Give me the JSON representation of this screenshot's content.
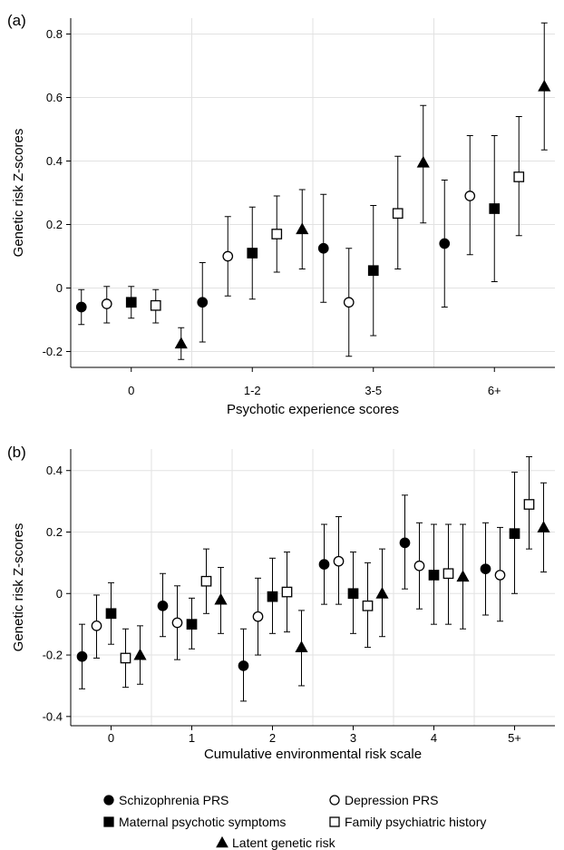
{
  "chart_data": [
    {
      "type": "scatter",
      "panel_label": "(a)",
      "title": "",
      "xlabel": "Psychotic experience scores",
      "ylabel": "Genetic risk Z-scores",
      "categories": [
        "0",
        "1-2",
        "3-5",
        "6+"
      ],
      "ylim": [
        -0.25,
        0.85
      ],
      "yticks": [
        "-0.2",
        "0",
        "0.2",
        "0.4",
        "0.6",
        "0.8"
      ],
      "ytick_values": [
        -0.2,
        0,
        0.2,
        0.4,
        0.6,
        0.8
      ],
      "grid": true,
      "series": [
        {
          "name": "Schizophrenia PRS",
          "marker": "filled-circle",
          "values": [
            -0.06,
            -0.045,
            0.125,
            0.14
          ],
          "lower": [
            -0.115,
            -0.17,
            -0.045,
            -0.06
          ],
          "upper": [
            -0.005,
            0.08,
            0.295,
            0.34
          ]
        },
        {
          "name": "Depression PRS",
          "marker": "open-circle",
          "values": [
            -0.05,
            0.1,
            -0.045,
            0.29
          ],
          "lower": [
            -0.11,
            -0.025,
            -0.215,
            0.105
          ],
          "upper": [
            0.005,
            0.225,
            0.125,
            0.48
          ]
        },
        {
          "name": "Maternal psychotic symptoms",
          "marker": "filled-square",
          "values": [
            -0.045,
            0.11,
            0.055,
            0.25
          ],
          "lower": [
            -0.095,
            -0.035,
            -0.15,
            0.02
          ],
          "upper": [
            0.005,
            0.255,
            0.26,
            0.48
          ]
        },
        {
          "name": "Family psychiatric history",
          "marker": "open-square",
          "values": [
            -0.055,
            0.17,
            0.235,
            0.35
          ],
          "lower": [
            -0.11,
            0.05,
            0.06,
            0.165
          ],
          "upper": [
            -0.005,
            0.29,
            0.415,
            0.54
          ]
        },
        {
          "name": "Latent genetic risk",
          "marker": "filled-triangle",
          "values": [
            -0.175,
            0.185,
            0.395,
            0.635
          ],
          "lower": [
            -0.225,
            0.06,
            0.205,
            0.435
          ],
          "upper": [
            -0.125,
            0.31,
            0.575,
            0.835
          ]
        }
      ]
    },
    {
      "type": "scatter",
      "panel_label": "(b)",
      "title": "",
      "xlabel": "Cumulative environmental risk scale",
      "ylabel": "Genetic risk Z-scores",
      "categories": [
        "0",
        "1",
        "2",
        "3",
        "4",
        "5+"
      ],
      "ylim": [
        -0.43,
        0.47
      ],
      "yticks": [
        "-0.4",
        "-0.2",
        "0",
        "0.2",
        "0.4"
      ],
      "ytick_values": [
        -0.4,
        -0.2,
        0,
        0.2,
        0.4
      ],
      "grid": true,
      "series": [
        {
          "name": "Schizophrenia PRS",
          "marker": "filled-circle",
          "values": [
            -0.205,
            -0.04,
            -0.235,
            0.095,
            0.165,
            0.08
          ],
          "lower": [
            -0.31,
            -0.14,
            -0.35,
            -0.035,
            0.015,
            -0.07
          ],
          "upper": [
            -0.1,
            0.065,
            -0.115,
            0.225,
            0.32,
            0.23
          ]
        },
        {
          "name": "Depression PRS",
          "marker": "open-circle",
          "values": [
            -0.105,
            -0.095,
            -0.075,
            0.105,
            0.09,
            0.06
          ],
          "lower": [
            -0.21,
            -0.215,
            -0.2,
            -0.035,
            -0.05,
            -0.09
          ],
          "upper": [
            -0.005,
            0.025,
            0.05,
            0.25,
            0.23,
            0.215
          ]
        },
        {
          "name": "Maternal psychotic symptoms",
          "marker": "filled-square",
          "values": [
            -0.065,
            -0.1,
            -0.01,
            0.0,
            0.06,
            0.195
          ],
          "lower": [
            -0.165,
            -0.18,
            -0.13,
            -0.13,
            -0.1,
            0.0
          ],
          "upper": [
            0.035,
            -0.015,
            0.115,
            0.135,
            0.225,
            0.395
          ]
        },
        {
          "name": "Family psychiatric history",
          "marker": "open-square",
          "values": [
            -0.21,
            0.04,
            0.005,
            -0.04,
            0.065,
            0.29
          ],
          "lower": [
            -0.305,
            -0.065,
            -0.125,
            -0.175,
            -0.1,
            0.145
          ],
          "upper": [
            -0.115,
            0.145,
            0.135,
            0.1,
            0.225,
            0.445
          ]
        },
        {
          "name": "Latent genetic risk",
          "marker": "filled-triangle",
          "values": [
            -0.2,
            -0.02,
            -0.175,
            0.0,
            0.055,
            0.215
          ],
          "lower": [
            -0.295,
            -0.13,
            -0.3,
            -0.14,
            -0.115,
            0.07
          ],
          "upper": [
            -0.105,
            0.085,
            -0.055,
            0.145,
            0.225,
            0.36
          ]
        }
      ]
    }
  ],
  "legend": {
    "items": [
      {
        "label": "Schizophrenia PRS",
        "marker": "filled-circle"
      },
      {
        "label": "Depression PRS",
        "marker": "open-circle"
      },
      {
        "label": "Maternal psychotic symptoms",
        "marker": "filled-square"
      },
      {
        "label": "Family psychiatric history",
        "marker": "open-square"
      },
      {
        "label": "Latent genetic risk",
        "marker": "filled-triangle"
      }
    ]
  }
}
